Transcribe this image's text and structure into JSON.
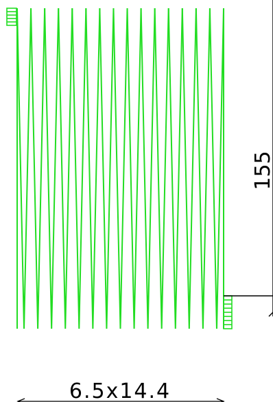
{
  "drawing": {
    "dimension_height": "155",
    "dimension_spec": "6.5x14.4",
    "spring_coils": 15,
    "colors": {
      "spring": "#22dd22",
      "dimension": "#000000",
      "background": "#ffffff"
    }
  }
}
